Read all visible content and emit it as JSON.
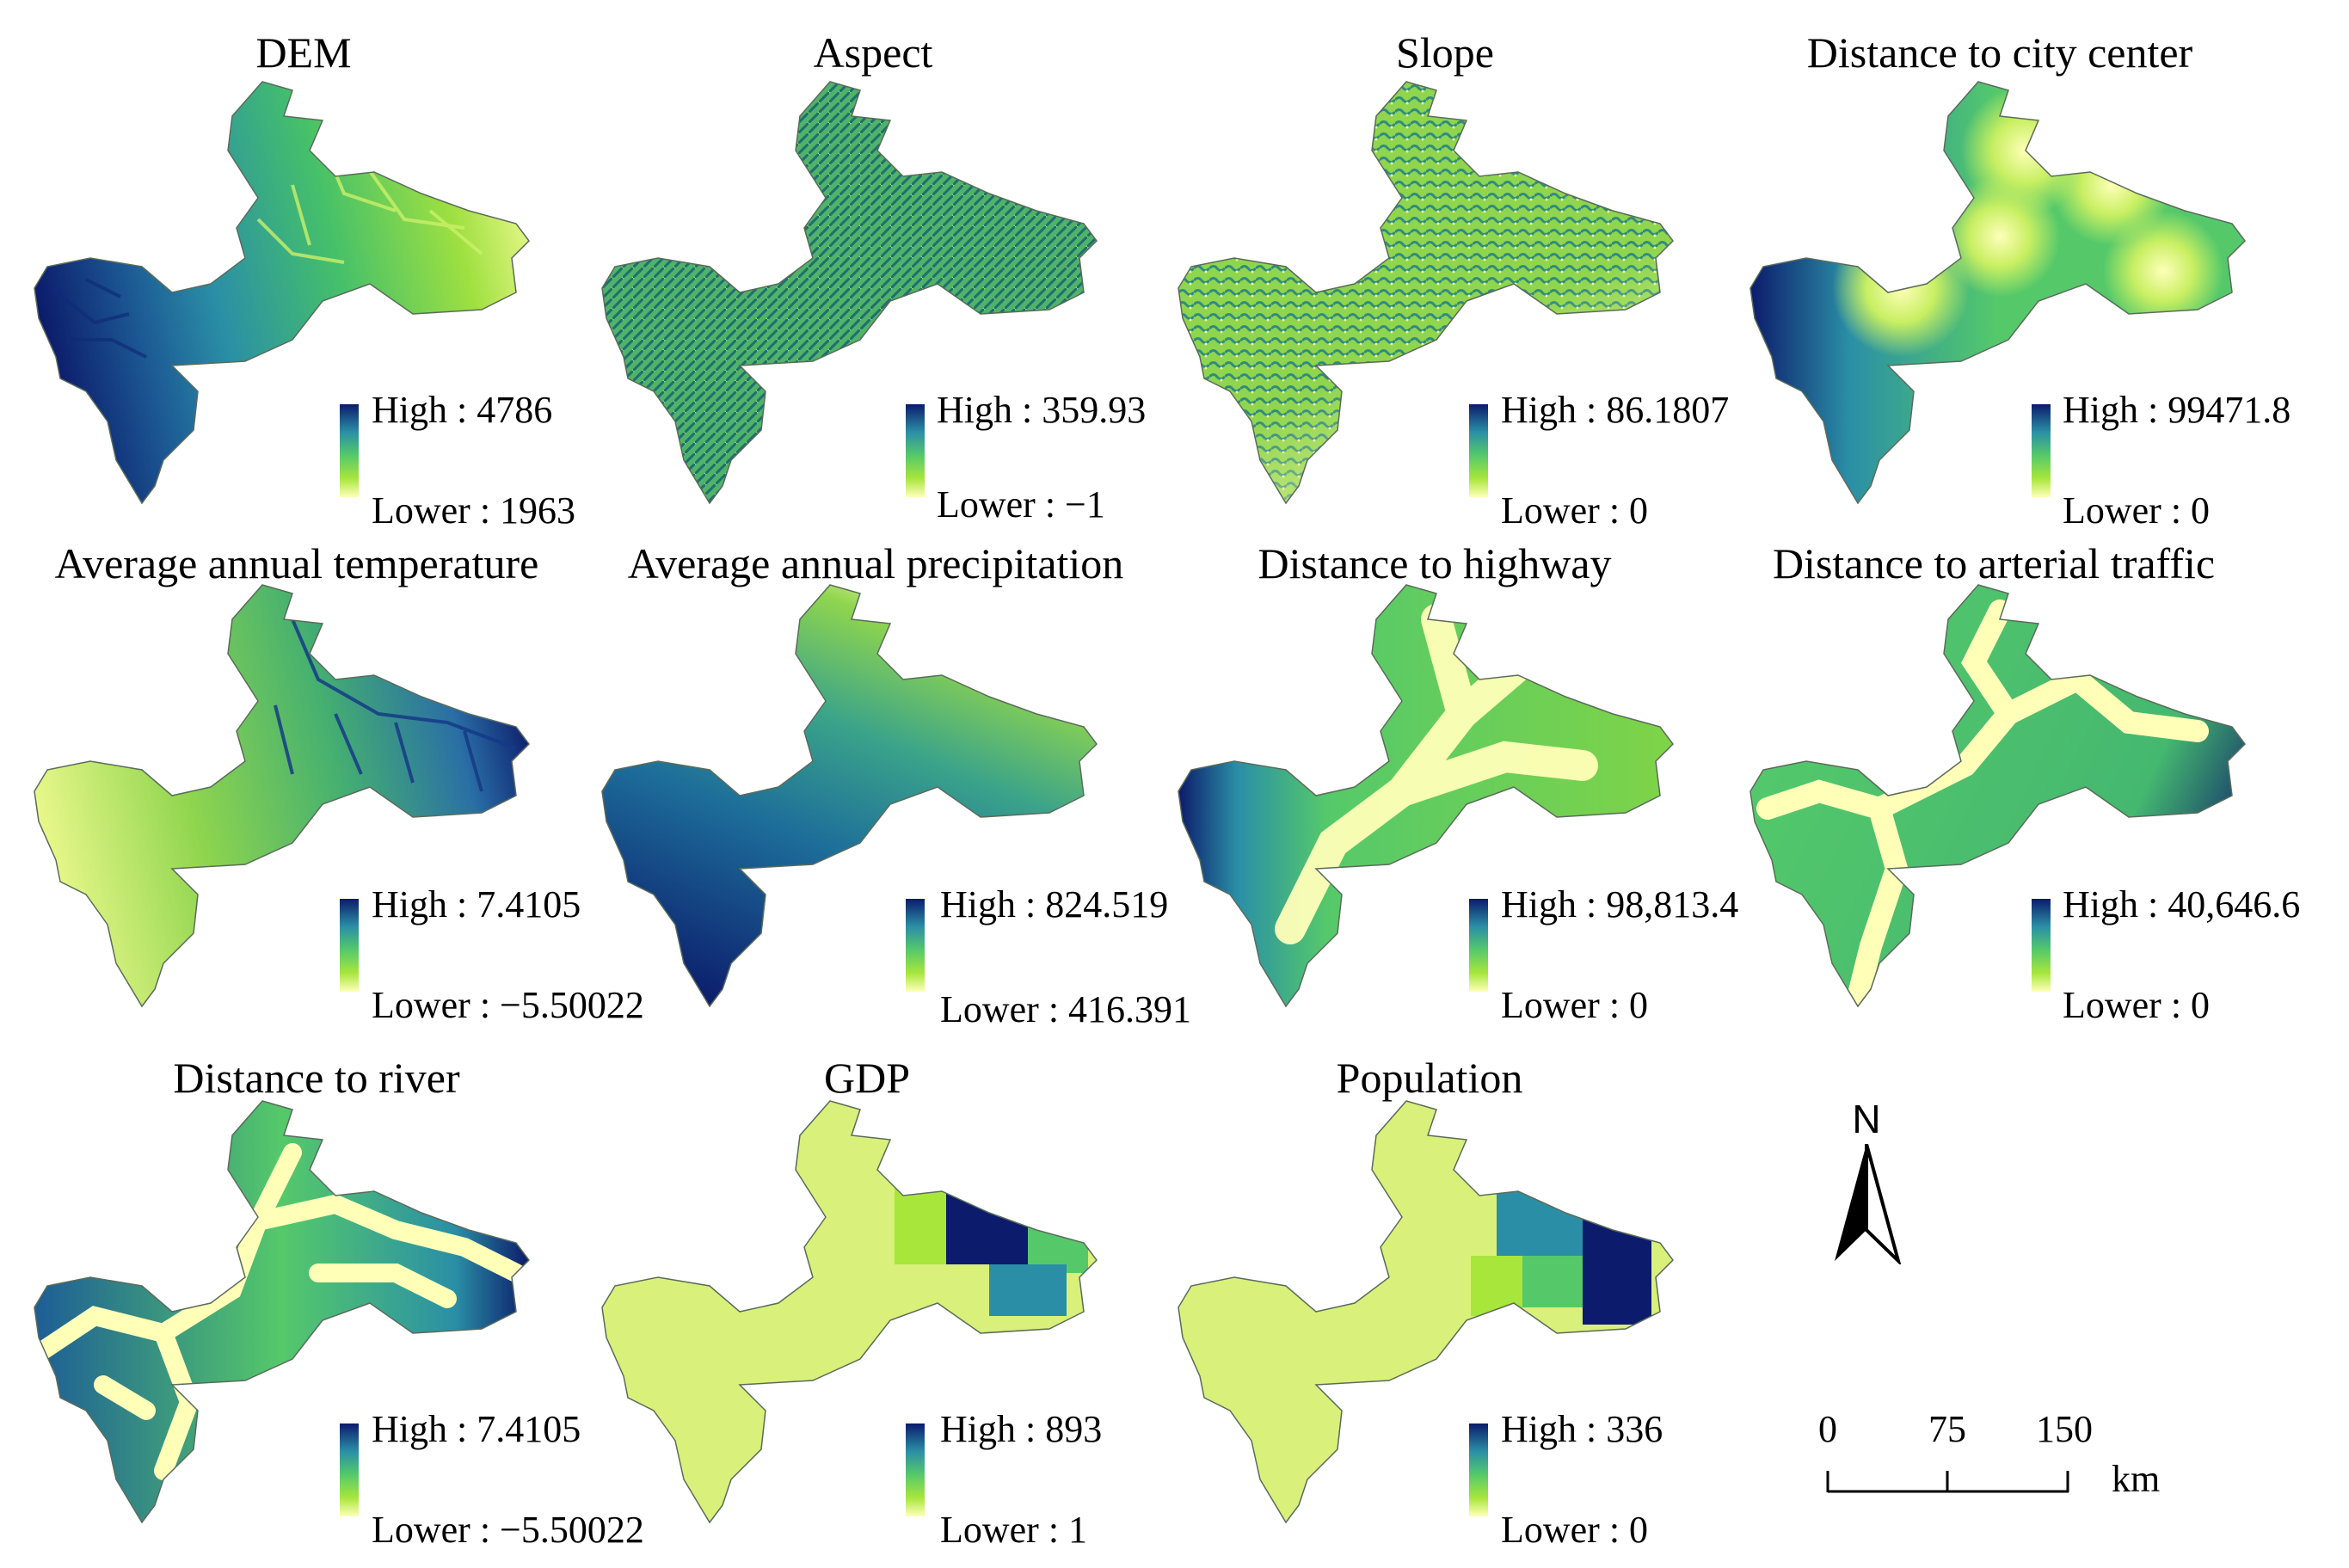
{
  "colors": {
    "ramp_high": "#0c1b6b",
    "ramp_mid_dark": "#2a8fa6",
    "ramp_mid": "#55c96a",
    "ramp_mid_light": "#a8e63c",
    "ramp_low": "#ffffb8",
    "outline": "#5a6b5a"
  },
  "panels": [
    {
      "id": "dem",
      "title": "DEM",
      "high_label": "High : 4786",
      "low_label": "Lower : 1963",
      "style": "dem"
    },
    {
      "id": "aspect",
      "title": "Aspect",
      "high_label": "High : 359.93",
      "low_label": "Lower : −1",
      "style": "aspect"
    },
    {
      "id": "slope",
      "title": "Slope",
      "high_label": "High : 86.1807",
      "low_label": "Lower : 0",
      "style": "slope"
    },
    {
      "id": "dist-city",
      "title": "Distance to city center",
      "high_label": "High : 99471.8",
      "low_label": "Lower : 0",
      "style": "city"
    },
    {
      "id": "temperature",
      "title": "Average annual temperature",
      "high_label": "High : 7.4105",
      "low_label": "Lower : −5.50022",
      "style": "temp"
    },
    {
      "id": "precipitation",
      "title": "Average annual precipitation",
      "high_label": "High : 824.519",
      "low_label": "Lower : 416.391",
      "style": "precip"
    },
    {
      "id": "dist-highway",
      "title": "Distance to highway",
      "high_label": "High : 98,813.4",
      "low_label": "Lower : 0",
      "style": "highway"
    },
    {
      "id": "dist-arterial",
      "title": "Distance to arterial traffic",
      "high_label": "High : 40,646.6",
      "low_label": "Lower : 0",
      "style": "arterial"
    },
    {
      "id": "dist-river",
      "title": "Distance to river",
      "high_label": "High : 7.4105",
      "low_label": "Lower : −5.50022",
      "style": "river"
    },
    {
      "id": "gdp",
      "title": "GDP",
      "high_label": "High : 893",
      "low_label": "Lower : 1",
      "style": "gdp"
    },
    {
      "id": "population",
      "title": "Population",
      "high_label": "High : 336",
      "low_label": "Lower : 0",
      "style": "pop"
    }
  ],
  "north_arrow": {
    "label": "N",
    "icon": "north-arrow-icon"
  },
  "scale_bar": {
    "ticks": [
      "0",
      "75",
      "150"
    ],
    "unit": "km"
  }
}
